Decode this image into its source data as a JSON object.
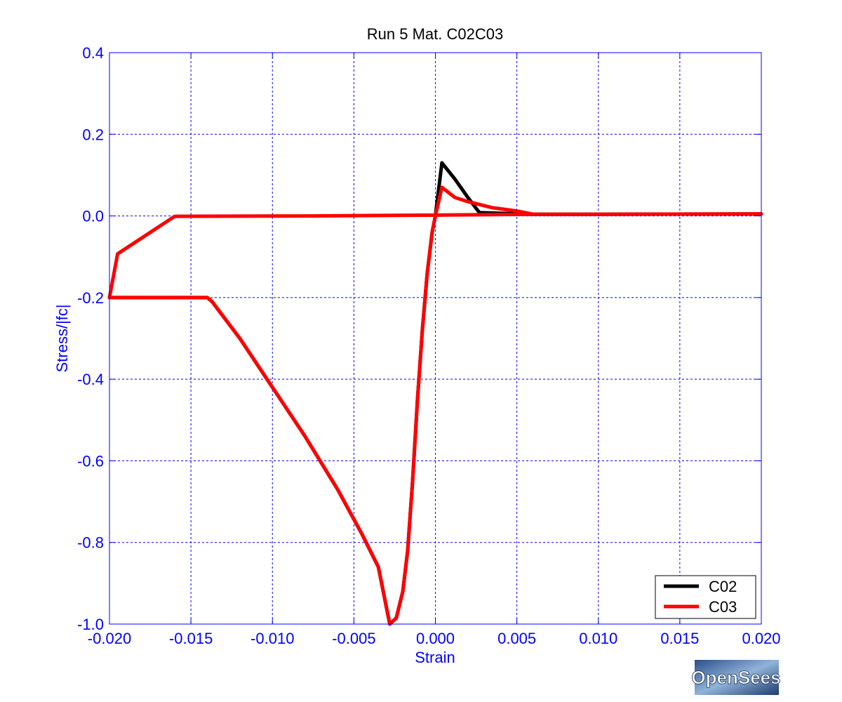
{
  "chart_data": {
    "type": "line",
    "title": "Run 5   Mat. C02C03",
    "xlabel": "Strain",
    "ylabel": "Stress/|fc|",
    "xlim": [
      -0.02,
      0.02
    ],
    "ylim": [
      -1.0,
      0.4
    ],
    "xticks": [
      -0.02,
      -0.015,
      -0.01,
      -0.005,
      0.0,
      0.005,
      0.01,
      0.015,
      0.02
    ],
    "xtick_labels": [
      "-0.020",
      "-0.015",
      "-0.010",
      "-0.005",
      "0.000",
      "0.005",
      "0.010",
      "0.015",
      "0.020"
    ],
    "yticks": [
      0.4,
      0.2,
      0.0,
      -0.2,
      -0.4,
      -0.6,
      -0.8,
      -1.0
    ],
    "ytick_labels": [
      "0.4",
      "0.2",
      "0.0",
      "-0.2",
      "-0.4",
      "-0.6",
      "-0.8",
      "-1.0"
    ],
    "grid": true,
    "legend_position": "bottom-right",
    "series": [
      {
        "name": "C02",
        "color": "#000000",
        "points": [
          [
            -0.02,
            -0.2
          ],
          [
            -0.014,
            -0.2
          ],
          [
            -0.0137,
            -0.21
          ],
          [
            -0.012,
            -0.3
          ],
          [
            -0.01,
            -0.42
          ],
          [
            -0.008,
            -0.54
          ],
          [
            -0.006,
            -0.67
          ],
          [
            -0.0045,
            -0.78
          ],
          [
            -0.0035,
            -0.86
          ],
          [
            -0.0028,
            -1.0
          ],
          [
            -0.0024,
            -0.985
          ],
          [
            -0.002,
            -0.92
          ],
          [
            -0.0017,
            -0.82
          ],
          [
            -0.0014,
            -0.65
          ],
          [
            -0.0011,
            -0.45
          ],
          [
            -0.0008,
            -0.28
          ],
          [
            -0.0005,
            -0.14
          ],
          [
            -0.0002,
            -0.04
          ],
          [
            0.0,
            0.0
          ],
          [
            0.0004,
            0.13
          ],
          [
            0.0012,
            0.09
          ],
          [
            0.002,
            0.045
          ],
          [
            0.0027,
            0.008
          ],
          [
            0.006,
            0.004
          ],
          [
            0.01,
            0.004
          ],
          [
            0.02,
            0.005
          ]
        ]
      },
      {
        "name": "C03",
        "color": "#ff0000",
        "points": [
          [
            -0.02,
            -0.2
          ],
          [
            -0.014,
            -0.2
          ],
          [
            -0.0137,
            -0.21
          ],
          [
            -0.012,
            -0.3
          ],
          [
            -0.01,
            -0.42
          ],
          [
            -0.008,
            -0.54
          ],
          [
            -0.006,
            -0.67
          ],
          [
            -0.0045,
            -0.78
          ],
          [
            -0.0035,
            -0.86
          ],
          [
            -0.0028,
            -1.0
          ],
          [
            -0.0024,
            -0.985
          ],
          [
            -0.002,
            -0.92
          ],
          [
            -0.0017,
            -0.82
          ],
          [
            -0.0014,
            -0.65
          ],
          [
            -0.0011,
            -0.45
          ],
          [
            -0.0008,
            -0.28
          ],
          [
            -0.0005,
            -0.14
          ],
          [
            -0.0002,
            -0.04
          ],
          [
            0.0,
            0.0
          ],
          [
            0.0004,
            0.07
          ],
          [
            0.0012,
            0.045
          ],
          [
            0.002,
            0.035
          ],
          [
            0.0035,
            0.02
          ],
          [
            0.005,
            0.012
          ],
          [
            0.006,
            0.004
          ],
          [
            0.01,
            0.004
          ],
          [
            0.02,
            0.005
          ],
          [
            0.01,
            0.004
          ],
          [
            0.006,
            0.004
          ],
          [
            0.0,
            0.002
          ],
          [
            -0.0075,
            0.0
          ],
          [
            -0.016,
            -0.001
          ],
          [
            -0.0195,
            -0.093
          ],
          [
            -0.02,
            -0.2
          ]
        ]
      }
    ]
  },
  "legend": {
    "entries": [
      {
        "label": "C02",
        "color": "#000000"
      },
      {
        "label": "C03",
        "color": "#ff0000"
      }
    ]
  },
  "logo": {
    "text": "OpenSees"
  }
}
